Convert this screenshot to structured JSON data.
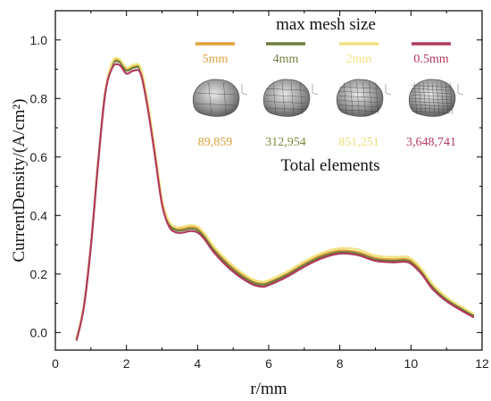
{
  "chart_data": {
    "type": "line",
    "xlabel": "r/mm",
    "ylabel": "CurrentDensity/(A/cm²)",
    "xlim": [
      0,
      12
    ],
    "ylim": [
      -0.06,
      1.1
    ],
    "xticks": [
      0,
      2,
      4,
      6,
      8,
      10,
      12
    ],
    "yticks": [
      0.0,
      0.2,
      0.4,
      0.6,
      0.8,
      1.0
    ],
    "xtick_labels": [
      "0",
      "2",
      "4",
      "6",
      "8",
      "10",
      "12"
    ],
    "ytick_labels": [
      "0.0",
      "0.2",
      "0.4",
      "0.6",
      "0.8",
      "1.0"
    ],
    "grid": false,
    "x": [
      0.6,
      0.8,
      1.0,
      1.2,
      1.4,
      1.6,
      1.8,
      2.0,
      2.2,
      2.4,
      2.6,
      2.8,
      3.0,
      3.2,
      3.4,
      3.6,
      3.8,
      4.0,
      4.2,
      4.5,
      5.0,
      5.5,
      5.8,
      6.0,
      6.5,
      7.0,
      7.5,
      8.0,
      8.5,
      9.0,
      9.5,
      9.8,
      10.0,
      10.3,
      10.6,
      11.0,
      11.4,
      11.75
    ],
    "series": [
      {
        "name": "5mm",
        "color": "#E0A03A",
        "values": [
          -0.02,
          0.09,
          0.3,
          0.58,
          0.82,
          0.92,
          0.93,
          0.9,
          0.91,
          0.9,
          0.78,
          0.62,
          0.45,
          0.375,
          0.355,
          0.355,
          0.36,
          0.355,
          0.33,
          0.28,
          0.22,
          0.178,
          0.167,
          0.172,
          0.2,
          0.235,
          0.265,
          0.28,
          0.275,
          0.255,
          0.25,
          0.252,
          0.245,
          0.21,
          0.16,
          0.115,
          0.085,
          0.06
        ]
      },
      {
        "name": "4mm",
        "color": "#6F7F3E",
        "values": [
          -0.02,
          0.09,
          0.3,
          0.58,
          0.82,
          0.915,
          0.925,
          0.895,
          0.905,
          0.895,
          0.775,
          0.615,
          0.445,
          0.37,
          0.35,
          0.35,
          0.355,
          0.35,
          0.325,
          0.275,
          0.215,
          0.174,
          0.164,
          0.169,
          0.196,
          0.231,
          0.26,
          0.275,
          0.27,
          0.25,
          0.245,
          0.247,
          0.24,
          0.205,
          0.156,
          0.112,
          0.082,
          0.058
        ]
      },
      {
        "name": "2mm",
        "color": "#F2E27E",
        "values": [
          -0.02,
          0.09,
          0.3,
          0.58,
          0.82,
          0.925,
          0.935,
          0.905,
          0.915,
          0.905,
          0.785,
          0.625,
          0.455,
          0.38,
          0.36,
          0.362,
          0.367,
          0.362,
          0.338,
          0.288,
          0.228,
          0.185,
          0.174,
          0.179,
          0.207,
          0.243,
          0.273,
          0.288,
          0.284,
          0.263,
          0.258,
          0.26,
          0.253,
          0.218,
          0.167,
          0.121,
          0.09,
          0.065
        ]
      },
      {
        "name": "0.5mm",
        "color": "#B03A5B",
        "values": [
          -0.025,
          0.085,
          0.295,
          0.575,
          0.815,
          0.905,
          0.915,
          0.885,
          0.895,
          0.885,
          0.765,
          0.605,
          0.438,
          0.362,
          0.342,
          0.342,
          0.347,
          0.342,
          0.318,
          0.268,
          0.208,
          0.167,
          0.157,
          0.162,
          0.19,
          0.225,
          0.254,
          0.27,
          0.265,
          0.245,
          0.24,
          0.242,
          0.235,
          0.2,
          0.15,
          0.107,
          0.077,
          0.053
        ]
      }
    ],
    "legend": {
      "title": "max mesh size",
      "footer": "Total elements",
      "items": [
        {
          "label": "5mm",
          "color": "#E0A03A",
          "count": "89,859",
          "count_color": "#D9A23A"
        },
        {
          "label": "4mm",
          "color": "#6F7F3E",
          "count": "312,954",
          "count_color": "#7A8A3E"
        },
        {
          "label": "2mm",
          "color": "#F2E27E",
          "count": "851,251",
          "count_color": "#EBDC7A"
        },
        {
          "label": "0.5mm",
          "color": "#B03A5B",
          "count": "3,648,741",
          "count_color": "#B53A62"
        }
      ],
      "placement": "top-right"
    }
  }
}
